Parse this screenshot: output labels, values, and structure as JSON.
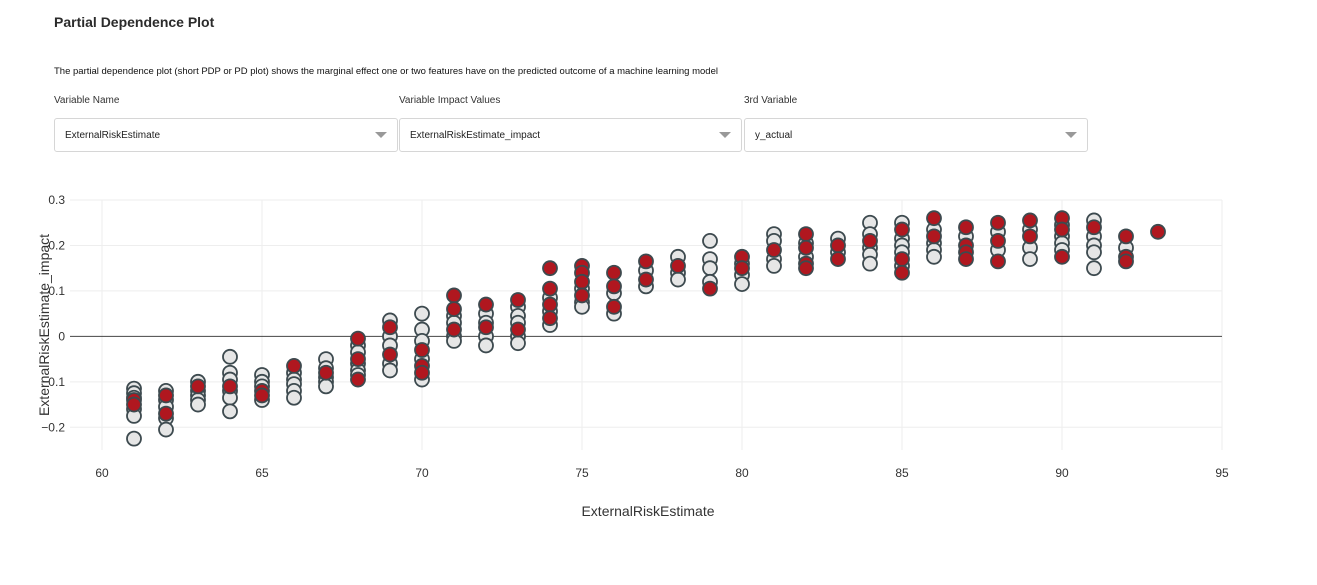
{
  "page": {
    "title": "Partial Dependence Plot",
    "description": "The partial dependence plot (short PDP or PD plot) shows the marginal effect one or two features have on the predicted outcome of a machine learning model"
  },
  "controls": {
    "variable_name": {
      "label": "Variable Name",
      "value": "ExternalRiskEstimate"
    },
    "impact_values": {
      "label": "Variable Impact Values",
      "value": "ExternalRiskEstimate_impact"
    },
    "third_variable": {
      "label": "3rd Variable",
      "value": "y_actual"
    }
  },
  "colors": {
    "positive": "#b0171f",
    "negative": "#e6e6e6",
    "marker_outline": "#3d4a4f",
    "grid": "#eeeeee",
    "zero_line": "#444444"
  },
  "chart_data": {
    "type": "scatter",
    "title": "",
    "xlabel": "ExternalRiskEstimate",
    "ylabel": "ExternalRiskEstimate_impact",
    "xlim": [
      59,
      95
    ],
    "ylim": [
      -0.25,
      0.3
    ],
    "x_ticks": [
      "60",
      "65",
      "70",
      "75",
      "80",
      "85",
      "90",
      "95"
    ],
    "y_ticks": [
      "0.3",
      "0.2",
      "0.1",
      "0",
      "−0.1",
      "−0.2"
    ],
    "x_tick_values": [
      60,
      65,
      70,
      75,
      80,
      85,
      90,
      95
    ],
    "y_tick_values": [
      0.3,
      0.2,
      0.1,
      0,
      -0.1,
      -0.2
    ],
    "grid": true,
    "zero_line": true,
    "color_by": "y_actual",
    "points": [
      {
        "x": 61,
        "y": -0.115,
        "c": 0
      },
      {
        "x": 61,
        "y": -0.125,
        "c": 0
      },
      {
        "x": 61,
        "y": -0.135,
        "c": 0
      },
      {
        "x": 61,
        "y": -0.14,
        "c": 1
      },
      {
        "x": 61,
        "y": -0.15,
        "c": 1
      },
      {
        "x": 61,
        "y": -0.16,
        "c": 0
      },
      {
        "x": 61,
        "y": -0.175,
        "c": 0
      },
      {
        "x": 61,
        "y": -0.225,
        "c": 0
      },
      {
        "x": 62,
        "y": -0.12,
        "c": 0
      },
      {
        "x": 62,
        "y": -0.13,
        "c": 1
      },
      {
        "x": 62,
        "y": -0.14,
        "c": 0
      },
      {
        "x": 62,
        "y": -0.155,
        "c": 0
      },
      {
        "x": 62,
        "y": -0.17,
        "c": 1
      },
      {
        "x": 62,
        "y": -0.18,
        "c": 0
      },
      {
        "x": 62,
        "y": -0.205,
        "c": 0
      },
      {
        "x": 63,
        "y": -0.1,
        "c": 0
      },
      {
        "x": 63,
        "y": -0.11,
        "c": 1
      },
      {
        "x": 63,
        "y": -0.12,
        "c": 0
      },
      {
        "x": 63,
        "y": -0.13,
        "c": 0
      },
      {
        "x": 63,
        "y": -0.14,
        "c": 0
      },
      {
        "x": 63,
        "y": -0.15,
        "c": 0
      },
      {
        "x": 64,
        "y": -0.045,
        "c": 0
      },
      {
        "x": 64,
        "y": -0.08,
        "c": 0
      },
      {
        "x": 64,
        "y": -0.095,
        "c": 0
      },
      {
        "x": 64,
        "y": -0.11,
        "c": 1
      },
      {
        "x": 64,
        "y": -0.12,
        "c": 0
      },
      {
        "x": 64,
        "y": -0.135,
        "c": 0
      },
      {
        "x": 64,
        "y": -0.165,
        "c": 0
      },
      {
        "x": 65,
        "y": -0.085,
        "c": 0
      },
      {
        "x": 65,
        "y": -0.1,
        "c": 0
      },
      {
        "x": 65,
        "y": -0.11,
        "c": 0
      },
      {
        "x": 65,
        "y": -0.12,
        "c": 1
      },
      {
        "x": 65,
        "y": -0.13,
        "c": 1
      },
      {
        "x": 65,
        "y": -0.14,
        "c": 0
      },
      {
        "x": 66,
        "y": -0.065,
        "c": 1
      },
      {
        "x": 66,
        "y": -0.08,
        "c": 0
      },
      {
        "x": 66,
        "y": -0.095,
        "c": 0
      },
      {
        "x": 66,
        "y": -0.105,
        "c": 0
      },
      {
        "x": 66,
        "y": -0.12,
        "c": 0
      },
      {
        "x": 66,
        "y": -0.135,
        "c": 0
      },
      {
        "x": 67,
        "y": -0.05,
        "c": 0
      },
      {
        "x": 67,
        "y": -0.07,
        "c": 0
      },
      {
        "x": 67,
        "y": -0.08,
        "c": 1
      },
      {
        "x": 67,
        "y": -0.09,
        "c": 0
      },
      {
        "x": 67,
        "y": -0.1,
        "c": 0
      },
      {
        "x": 67,
        "y": -0.11,
        "c": 0
      },
      {
        "x": 68,
        "y": -0.005,
        "c": 1
      },
      {
        "x": 68,
        "y": -0.02,
        "c": 0
      },
      {
        "x": 68,
        "y": -0.035,
        "c": 0
      },
      {
        "x": 68,
        "y": -0.05,
        "c": 1
      },
      {
        "x": 68,
        "y": -0.06,
        "c": 0
      },
      {
        "x": 68,
        "y": -0.075,
        "c": 0
      },
      {
        "x": 68,
        "y": -0.085,
        "c": 0
      },
      {
        "x": 68,
        "y": -0.095,
        "c": 1
      },
      {
        "x": 69,
        "y": 0.035,
        "c": 0
      },
      {
        "x": 69,
        "y": 0.02,
        "c": 1
      },
      {
        "x": 69,
        "y": 0.0,
        "c": 0
      },
      {
        "x": 69,
        "y": -0.02,
        "c": 0
      },
      {
        "x": 69,
        "y": -0.04,
        "c": 1
      },
      {
        "x": 69,
        "y": -0.06,
        "c": 0
      },
      {
        "x": 69,
        "y": -0.075,
        "c": 0
      },
      {
        "x": 70,
        "y": 0.05,
        "c": 0
      },
      {
        "x": 70,
        "y": 0.015,
        "c": 0
      },
      {
        "x": 70,
        "y": -0.01,
        "c": 0
      },
      {
        "x": 70,
        "y": -0.03,
        "c": 1
      },
      {
        "x": 70,
        "y": -0.05,
        "c": 0
      },
      {
        "x": 70,
        "y": -0.065,
        "c": 1
      },
      {
        "x": 70,
        "y": -0.08,
        "c": 1
      },
      {
        "x": 70,
        "y": -0.095,
        "c": 0
      },
      {
        "x": 71,
        "y": 0.09,
        "c": 1
      },
      {
        "x": 71,
        "y": 0.06,
        "c": 1
      },
      {
        "x": 71,
        "y": 0.045,
        "c": 0
      },
      {
        "x": 71,
        "y": 0.03,
        "c": 0
      },
      {
        "x": 71,
        "y": 0.015,
        "c": 1
      },
      {
        "x": 71,
        "y": 0.0,
        "c": 0
      },
      {
        "x": 71,
        "y": -0.01,
        "c": 0
      },
      {
        "x": 72,
        "y": 0.07,
        "c": 1
      },
      {
        "x": 72,
        "y": 0.05,
        "c": 0
      },
      {
        "x": 72,
        "y": 0.03,
        "c": 0
      },
      {
        "x": 72,
        "y": 0.02,
        "c": 1
      },
      {
        "x": 72,
        "y": 0.0,
        "c": 0
      },
      {
        "x": 72,
        "y": -0.02,
        "c": 0
      },
      {
        "x": 73,
        "y": 0.08,
        "c": 1
      },
      {
        "x": 73,
        "y": 0.065,
        "c": 0
      },
      {
        "x": 73,
        "y": 0.045,
        "c": 0
      },
      {
        "x": 73,
        "y": 0.03,
        "c": 0
      },
      {
        "x": 73,
        "y": 0.015,
        "c": 1
      },
      {
        "x": 73,
        "y": 0.0,
        "c": 0
      },
      {
        "x": 73,
        "y": -0.015,
        "c": 0
      },
      {
        "x": 74,
        "y": 0.15,
        "c": 1
      },
      {
        "x": 74,
        "y": 0.105,
        "c": 1
      },
      {
        "x": 74,
        "y": 0.085,
        "c": 0
      },
      {
        "x": 74,
        "y": 0.07,
        "c": 1
      },
      {
        "x": 74,
        "y": 0.055,
        "c": 0
      },
      {
        "x": 74,
        "y": 0.04,
        "c": 1
      },
      {
        "x": 74,
        "y": 0.025,
        "c": 0
      },
      {
        "x": 75,
        "y": 0.155,
        "c": 1
      },
      {
        "x": 75,
        "y": 0.14,
        "c": 1
      },
      {
        "x": 75,
        "y": 0.12,
        "c": 1
      },
      {
        "x": 75,
        "y": 0.105,
        "c": 0
      },
      {
        "x": 75,
        "y": 0.09,
        "c": 1
      },
      {
        "x": 75,
        "y": 0.075,
        "c": 0
      },
      {
        "x": 75,
        "y": 0.065,
        "c": 0
      },
      {
        "x": 76,
        "y": 0.14,
        "c": 1
      },
      {
        "x": 76,
        "y": 0.11,
        "c": 1
      },
      {
        "x": 76,
        "y": 0.095,
        "c": 0
      },
      {
        "x": 76,
        "y": 0.065,
        "c": 1
      },
      {
        "x": 76,
        "y": 0.05,
        "c": 0
      },
      {
        "x": 77,
        "y": 0.165,
        "c": 1
      },
      {
        "x": 77,
        "y": 0.145,
        "c": 0
      },
      {
        "x": 77,
        "y": 0.125,
        "c": 1
      },
      {
        "x": 77,
        "y": 0.11,
        "c": 0
      },
      {
        "x": 78,
        "y": 0.175,
        "c": 0
      },
      {
        "x": 78,
        "y": 0.155,
        "c": 1
      },
      {
        "x": 78,
        "y": 0.14,
        "c": 0
      },
      {
        "x": 78,
        "y": 0.125,
        "c": 0
      },
      {
        "x": 79,
        "y": 0.21,
        "c": 0
      },
      {
        "x": 79,
        "y": 0.17,
        "c": 0
      },
      {
        "x": 79,
        "y": 0.15,
        "c": 0
      },
      {
        "x": 79,
        "y": 0.12,
        "c": 0
      },
      {
        "x": 79,
        "y": 0.105,
        "c": 1
      },
      {
        "x": 80,
        "y": 0.175,
        "c": 1
      },
      {
        "x": 80,
        "y": 0.16,
        "c": 0
      },
      {
        "x": 80,
        "y": 0.15,
        "c": 1
      },
      {
        "x": 80,
        "y": 0.135,
        "c": 0
      },
      {
        "x": 80,
        "y": 0.115,
        "c": 0
      },
      {
        "x": 81,
        "y": 0.225,
        "c": 0
      },
      {
        "x": 81,
        "y": 0.21,
        "c": 0
      },
      {
        "x": 81,
        "y": 0.19,
        "c": 1
      },
      {
        "x": 81,
        "y": 0.17,
        "c": 0
      },
      {
        "x": 81,
        "y": 0.155,
        "c": 0
      },
      {
        "x": 82,
        "y": 0.225,
        "c": 1
      },
      {
        "x": 82,
        "y": 0.205,
        "c": 0
      },
      {
        "x": 82,
        "y": 0.195,
        "c": 1
      },
      {
        "x": 82,
        "y": 0.175,
        "c": 0
      },
      {
        "x": 82,
        "y": 0.16,
        "c": 1
      },
      {
        "x": 82,
        "y": 0.15,
        "c": 1
      },
      {
        "x": 83,
        "y": 0.215,
        "c": 0
      },
      {
        "x": 83,
        "y": 0.2,
        "c": 1
      },
      {
        "x": 83,
        "y": 0.185,
        "c": 0
      },
      {
        "x": 83,
        "y": 0.17,
        "c": 1
      },
      {
        "x": 84,
        "y": 0.25,
        "c": 0
      },
      {
        "x": 84,
        "y": 0.225,
        "c": 0
      },
      {
        "x": 84,
        "y": 0.21,
        "c": 1
      },
      {
        "x": 84,
        "y": 0.195,
        "c": 0
      },
      {
        "x": 84,
        "y": 0.18,
        "c": 0
      },
      {
        "x": 84,
        "y": 0.16,
        "c": 0
      },
      {
        "x": 85,
        "y": 0.25,
        "c": 0
      },
      {
        "x": 85,
        "y": 0.235,
        "c": 1
      },
      {
        "x": 85,
        "y": 0.215,
        "c": 0
      },
      {
        "x": 85,
        "y": 0.2,
        "c": 0
      },
      {
        "x": 85,
        "y": 0.185,
        "c": 0
      },
      {
        "x": 85,
        "y": 0.17,
        "c": 1
      },
      {
        "x": 85,
        "y": 0.155,
        "c": 0
      },
      {
        "x": 85,
        "y": 0.14,
        "c": 1
      },
      {
        "x": 86,
        "y": 0.26,
        "c": 1
      },
      {
        "x": 86,
        "y": 0.235,
        "c": 0
      },
      {
        "x": 86,
        "y": 0.22,
        "c": 1
      },
      {
        "x": 86,
        "y": 0.205,
        "c": 0
      },
      {
        "x": 86,
        "y": 0.19,
        "c": 0
      },
      {
        "x": 86,
        "y": 0.175,
        "c": 0
      },
      {
        "x": 87,
        "y": 0.24,
        "c": 1
      },
      {
        "x": 87,
        "y": 0.22,
        "c": 0
      },
      {
        "x": 87,
        "y": 0.2,
        "c": 1
      },
      {
        "x": 87,
        "y": 0.185,
        "c": 1
      },
      {
        "x": 87,
        "y": 0.17,
        "c": 1
      },
      {
        "x": 88,
        "y": 0.25,
        "c": 1
      },
      {
        "x": 88,
        "y": 0.23,
        "c": 0
      },
      {
        "x": 88,
        "y": 0.21,
        "c": 1
      },
      {
        "x": 88,
        "y": 0.19,
        "c": 0
      },
      {
        "x": 88,
        "y": 0.165,
        "c": 1
      },
      {
        "x": 89,
        "y": 0.255,
        "c": 1
      },
      {
        "x": 89,
        "y": 0.235,
        "c": 0
      },
      {
        "x": 89,
        "y": 0.22,
        "c": 1
      },
      {
        "x": 89,
        "y": 0.195,
        "c": 0
      },
      {
        "x": 89,
        "y": 0.17,
        "c": 0
      },
      {
        "x": 90,
        "y": 0.26,
        "c": 1
      },
      {
        "x": 90,
        "y": 0.245,
        "c": 0
      },
      {
        "x": 90,
        "y": 0.235,
        "c": 1
      },
      {
        "x": 90,
        "y": 0.22,
        "c": 0
      },
      {
        "x": 90,
        "y": 0.205,
        "c": 0
      },
      {
        "x": 90,
        "y": 0.19,
        "c": 0
      },
      {
        "x": 90,
        "y": 0.175,
        "c": 1
      },
      {
        "x": 91,
        "y": 0.255,
        "c": 0
      },
      {
        "x": 91,
        "y": 0.24,
        "c": 1
      },
      {
        "x": 91,
        "y": 0.22,
        "c": 0
      },
      {
        "x": 91,
        "y": 0.2,
        "c": 0
      },
      {
        "x": 91,
        "y": 0.185,
        "c": 0
      },
      {
        "x": 91,
        "y": 0.15,
        "c": 0
      },
      {
        "x": 92,
        "y": 0.22,
        "c": 1
      },
      {
        "x": 92,
        "y": 0.195,
        "c": 0
      },
      {
        "x": 92,
        "y": 0.175,
        "c": 1
      },
      {
        "x": 92,
        "y": 0.165,
        "c": 1
      },
      {
        "x": 93,
        "y": 0.23,
        "c": 1
      }
    ]
  }
}
